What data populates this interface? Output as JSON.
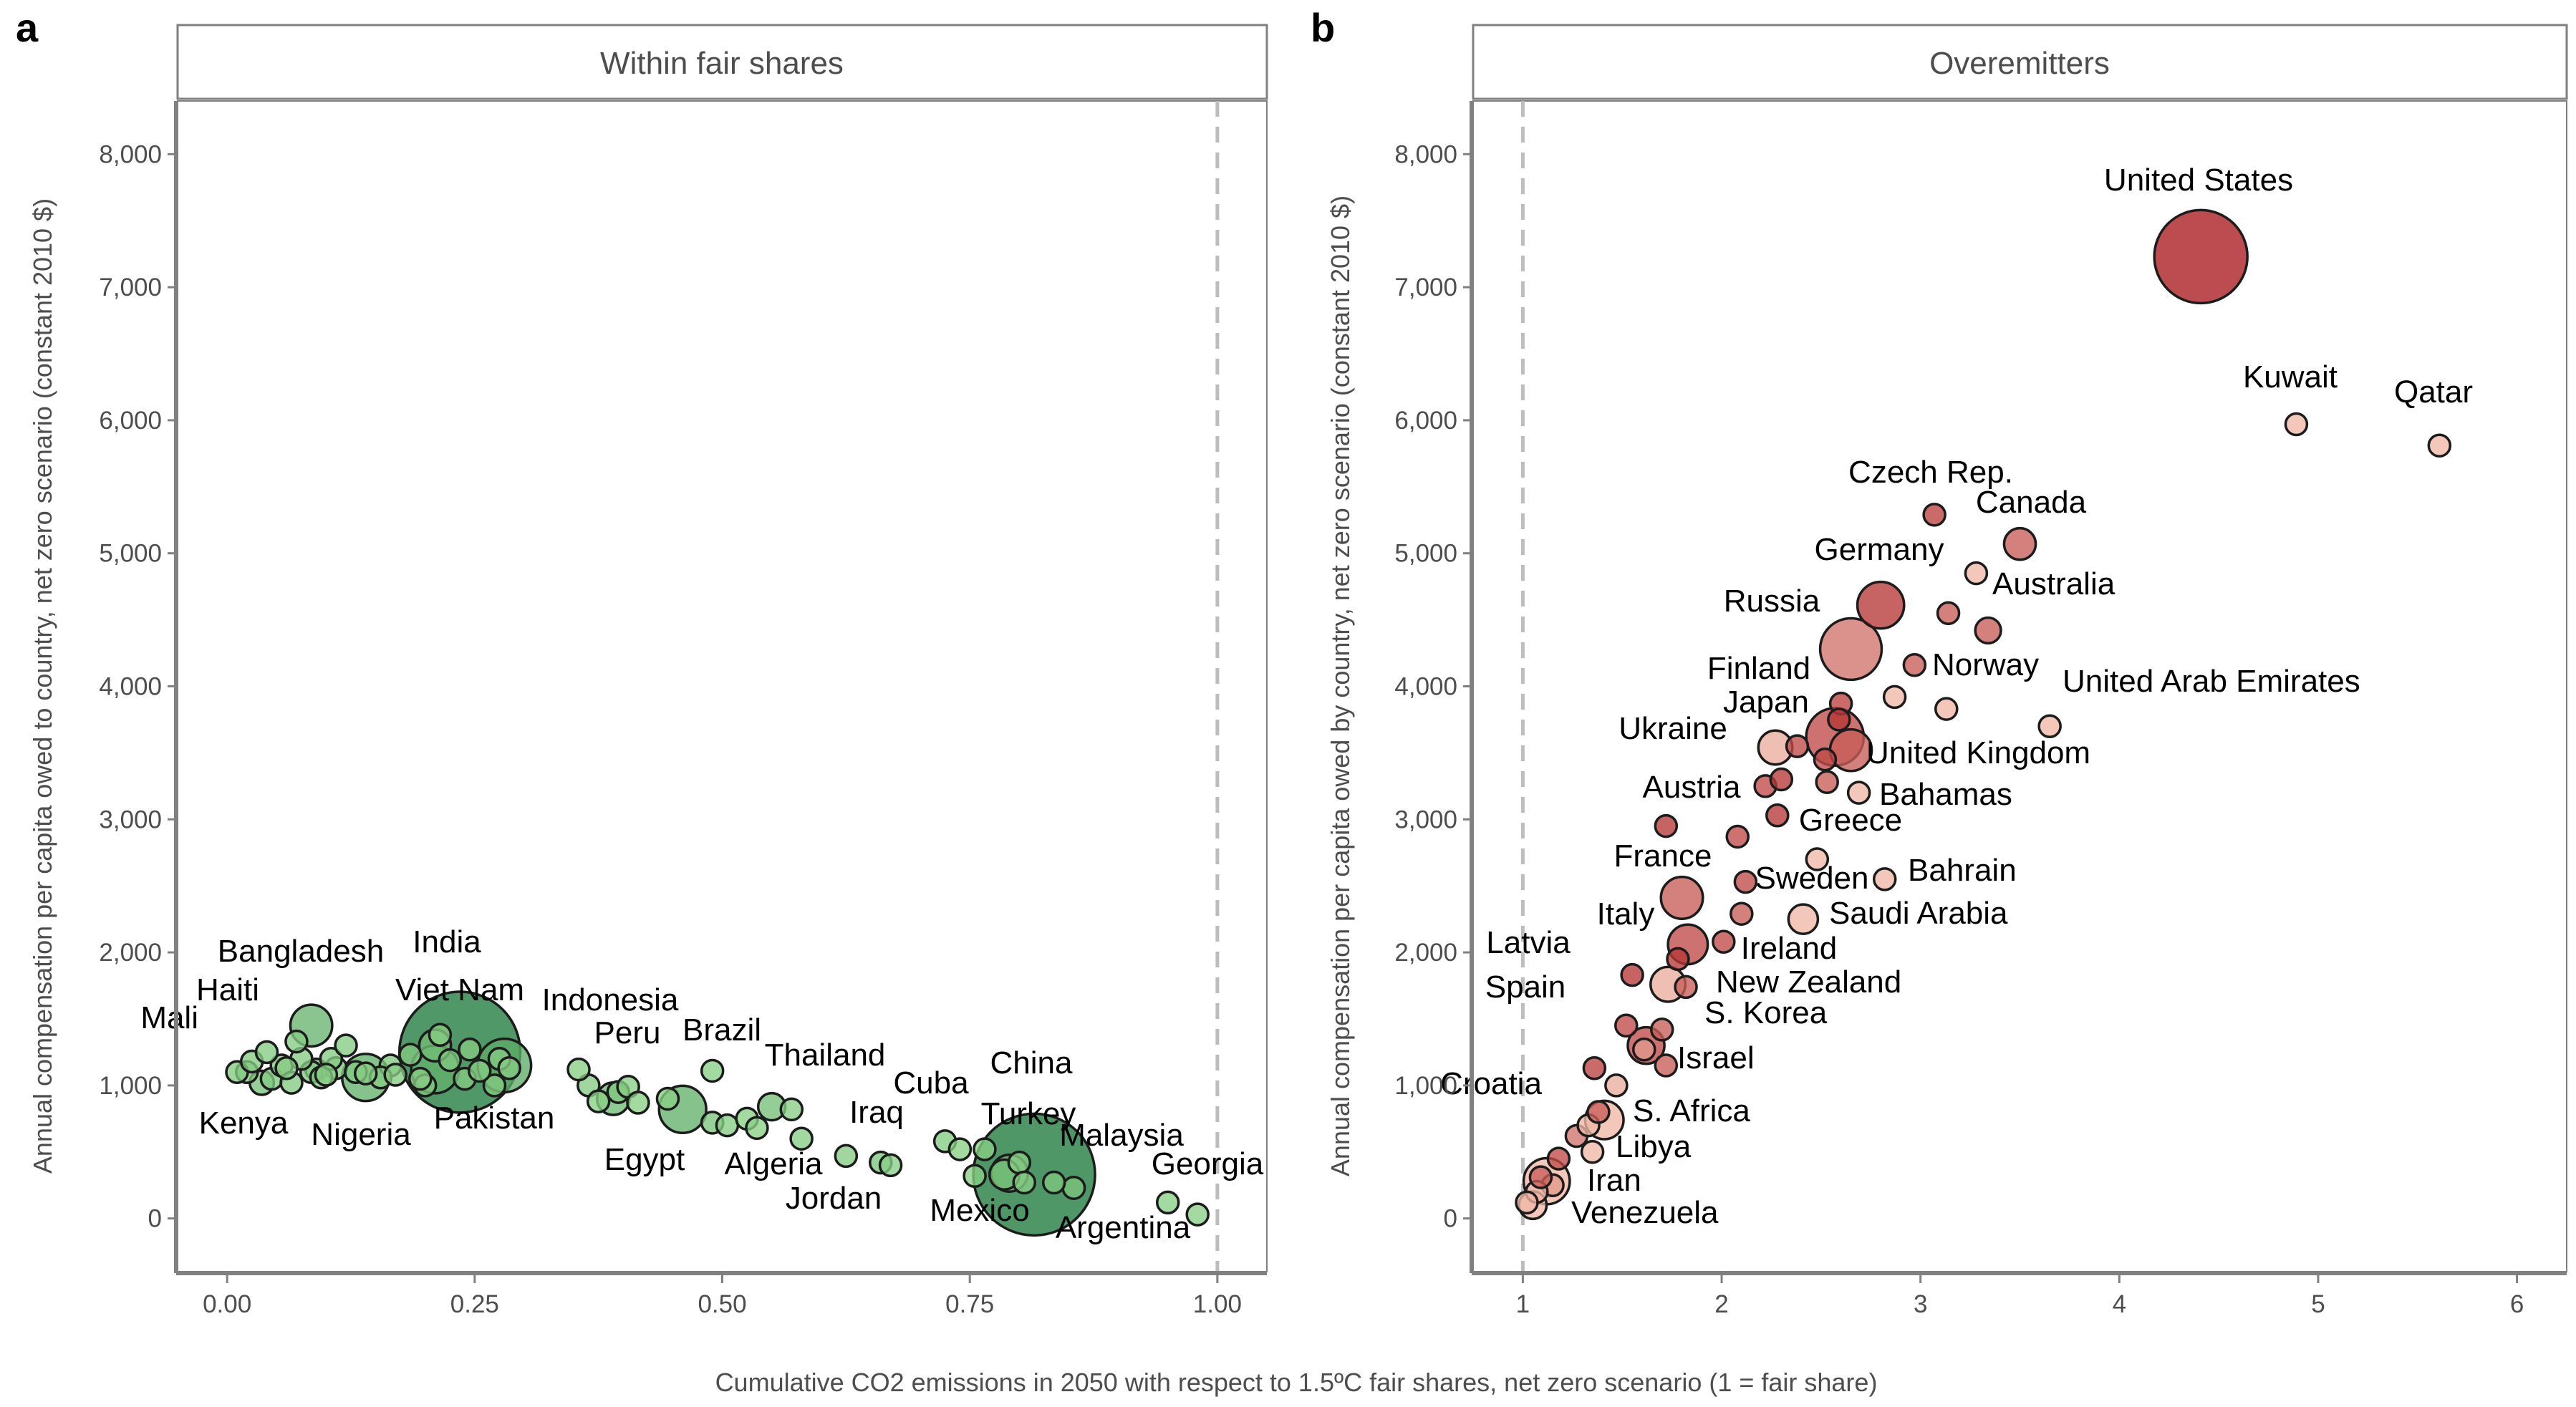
{
  "x_axis_title": "Cumulative CO2 emissions in 2050 with respect to 1.5ºC fair shares, net zero scenario (1 = fair share)",
  "chart_data": [
    {
      "panel": "a",
      "type": "scatter",
      "strip": "Within fair shares",
      "ylabel": "Annual compensation per capita owed to country, net zero scenario (constant 2010 $)",
      "xlim": [
        -0.05,
        1.05
      ],
      "ylim": [
        -400,
        8400
      ],
      "x_ticks": [
        "0.00",
        "0.25",
        "0.50",
        "0.75",
        "1.00"
      ],
      "y_ticks": [
        "0",
        "1,000",
        "2,000",
        "3,000",
        "4,000",
        "5,000",
        "6,000",
        "7,000",
        "8,000"
      ],
      "reference_line_x": 1,
      "color_scale": "greens",
      "labeled_points": [
        {
          "label": "India",
          "x": 0.235,
          "y": 1250,
          "size": 1380
        },
        {
          "label": "China",
          "x": 0.815,
          "y": 330,
          "size": 1400
        },
        {
          "label": "Indonesia",
          "x": 0.28,
          "y": 1150,
          "size": 270
        },
        {
          "label": "Pakistan",
          "x": 0.21,
          "y": 1120,
          "size": 215
        },
        {
          "label": "Nigeria",
          "x": 0.14,
          "y": 1060,
          "size": 210
        },
        {
          "label": "Bangladesh",
          "x": 0.085,
          "y": 1450,
          "size": 165
        },
        {
          "label": "Brazil",
          "x": 0.46,
          "y": 820,
          "size": 210
        },
        {
          "label": "Egypt",
          "x": 0.39,
          "y": 900,
          "size": 100
        },
        {
          "label": "Viet Nam",
          "x": 0.21,
          "y": 1300,
          "size": 95
        },
        {
          "label": "Kenya",
          "x": 0.035,
          "y": 1020,
          "size": 55
        },
        {
          "label": "Haiti",
          "x": 0.07,
          "y": 1330,
          "size": 11
        },
        {
          "label": "Mali",
          "x": 0.02,
          "y": 1100,
          "size": 20
        },
        {
          "label": "Peru",
          "x": 0.395,
          "y": 950,
          "size": 33
        },
        {
          "label": "Thailand",
          "x": 0.55,
          "y": 840,
          "size": 70
        },
        {
          "label": "Algeria",
          "x": 0.49,
          "y": 720,
          "size": 44
        },
        {
          "label": "Cuba",
          "x": 0.725,
          "y": 580,
          "size": 11
        },
        {
          "label": "Iraq",
          "x": 0.66,
          "y": 420,
          "size": 40
        },
        {
          "label": "Jordan",
          "x": 0.625,
          "y": 470,
          "size": 10
        },
        {
          "label": "Turkey",
          "x": 0.785,
          "y": 330,
          "size": 84
        },
        {
          "label": "Mexico",
          "x": 0.79,
          "y": 340,
          "size": 128
        },
        {
          "label": "Malaysia",
          "x": 0.835,
          "y": 270,
          "size": 32
        },
        {
          "label": "Argentina",
          "x": 0.855,
          "y": 230,
          "size": 45
        },
        {
          "label": "Georgia",
          "x": 0.95,
          "y": 120,
          "size": 4
        }
      ],
      "other_points": [
        {
          "x": 0.01,
          "y": 1100,
          "size": 15
        },
        {
          "x": 0.025,
          "y": 1180,
          "size": 12
        },
        {
          "x": 0.04,
          "y": 1250,
          "size": 12
        },
        {
          "x": 0.045,
          "y": 1050,
          "size": 18
        },
        {
          "x": 0.055,
          "y": 1150,
          "size": 14
        },
        {
          "x": 0.06,
          "y": 1130,
          "size": 10
        },
        {
          "x": 0.065,
          "y": 1020,
          "size": 14
        },
        {
          "x": 0.075,
          "y": 1200,
          "size": 12
        },
        {
          "x": 0.085,
          "y": 1100,
          "size": 16
        },
        {
          "x": 0.09,
          "y": 1120,
          "size": 22
        },
        {
          "x": 0.095,
          "y": 1060,
          "size": 16
        },
        {
          "x": 0.1,
          "y": 1080,
          "size": 12
        },
        {
          "x": 0.105,
          "y": 1200,
          "size": 14
        },
        {
          "x": 0.11,
          "y": 1130,
          "size": 18
        },
        {
          "x": 0.12,
          "y": 1300,
          "size": 12
        },
        {
          "x": 0.13,
          "y": 1100,
          "size": 16
        },
        {
          "x": 0.14,
          "y": 1090,
          "size": 12
        },
        {
          "x": 0.155,
          "y": 1060,
          "size": 14
        },
        {
          "x": 0.165,
          "y": 1150,
          "size": 18
        },
        {
          "x": 0.17,
          "y": 1080,
          "size": 10
        },
        {
          "x": 0.185,
          "y": 1230,
          "size": 20
        },
        {
          "x": 0.195,
          "y": 1050,
          "size": 10
        },
        {
          "x": 0.2,
          "y": 1000,
          "size": 28
        },
        {
          "x": 0.215,
          "y": 1380,
          "size": 9
        },
        {
          "x": 0.225,
          "y": 1190,
          "size": 24
        },
        {
          "x": 0.24,
          "y": 1050,
          "size": 12
        },
        {
          "x": 0.245,
          "y": 1270,
          "size": 14
        },
        {
          "x": 0.255,
          "y": 1110,
          "size": 9
        },
        {
          "x": 0.27,
          "y": 1000,
          "size": 16
        },
        {
          "x": 0.275,
          "y": 1200,
          "size": 14
        },
        {
          "x": 0.285,
          "y": 1130,
          "size": 9
        },
        {
          "x": 0.355,
          "y": 1120,
          "size": 5
        },
        {
          "x": 0.365,
          "y": 1000,
          "size": 10
        },
        {
          "x": 0.375,
          "y": 880,
          "size": 5
        },
        {
          "x": 0.405,
          "y": 990,
          "size": 5
        },
        {
          "x": 0.415,
          "y": 870,
          "size": 5
        },
        {
          "x": 0.445,
          "y": 900,
          "size": 5
        },
        {
          "x": 0.49,
          "y": 1110,
          "size": 4
        },
        {
          "x": 0.505,
          "y": 700,
          "size": 9
        },
        {
          "x": 0.525,
          "y": 750,
          "size": 5
        },
        {
          "x": 0.535,
          "y": 680,
          "size": 5
        },
        {
          "x": 0.57,
          "y": 820,
          "size": 6
        },
        {
          "x": 0.58,
          "y": 600,
          "size": 6
        },
        {
          "x": 0.67,
          "y": 400,
          "size": 4
        },
        {
          "x": 0.74,
          "y": 520,
          "size": 5
        },
        {
          "x": 0.755,
          "y": 320,
          "size": 5
        },
        {
          "x": 0.765,
          "y": 520,
          "size": 5
        },
        {
          "x": 0.8,
          "y": 420,
          "size": 6
        },
        {
          "x": 0.805,
          "y": 270,
          "size": 5
        },
        {
          "x": 0.98,
          "y": 30,
          "size": 3
        }
      ]
    },
    {
      "panel": "b",
      "type": "scatter",
      "strip": "Overemitters",
      "ylabel": "Annual compensation per capita owed by country, net zero scenario (constant 2010 $)",
      "xlim": [
        0.75,
        6.25
      ],
      "ylim": [
        -400,
        8400
      ],
      "x_ticks": [
        "1",
        "2",
        "3",
        "4",
        "5",
        "6"
      ],
      "y_ticks": [
        "0",
        "1,000",
        "2,000",
        "3,000",
        "4,000",
        "5,000",
        "6,000",
        "7,000",
        "8,000"
      ],
      "reference_line_x": 1,
      "color_scale": "reds",
      "labeled_points": [
        {
          "label": "United States",
          "x": 4.41,
          "y": 7230,
          "size": 330,
          "shade": 0.95
        },
        {
          "label": "Kuwait",
          "x": 4.89,
          "y": 5970,
          "size": 4,
          "shade": 0.15
        },
        {
          "label": "Qatar",
          "x": 5.61,
          "y": 5810,
          "size": 3,
          "shade": 0.15
        },
        {
          "label": "Czech Rep.",
          "x": 3.07,
          "y": 5290,
          "size": 11,
          "shade": 0.75
        },
        {
          "label": "Canada",
          "x": 3.5,
          "y": 5070,
          "size": 38,
          "shade": 0.6
        },
        {
          "label": "Germany",
          "x": 2.8,
          "y": 4610,
          "size": 83,
          "shade": 0.8
        },
        {
          "label": "Australia",
          "x": 3.34,
          "y": 4420,
          "size": 25,
          "shade": 0.6
        },
        {
          "label": "Russia",
          "x": 2.65,
          "y": 4280,
          "size": 144,
          "shade": 0.5
        },
        {
          "label": "Norway",
          "x": 2.87,
          "y": 3920,
          "size": 5,
          "shade": 0.15
        },
        {
          "label": "United Arab Emirates",
          "x": 3.65,
          "y": 3700,
          "size": 10,
          "shade": 0.15
        },
        {
          "label": "Finland",
          "x": 2.6,
          "y": 3870,
          "size": 6,
          "shade": 0.75
        },
        {
          "label": "Japan",
          "x": 2.57,
          "y": 3620,
          "size": 126,
          "shade": 0.7
        },
        {
          "label": "Ukraine",
          "x": 2.27,
          "y": 3540,
          "size": 44,
          "shade": 0.2
        },
        {
          "label": "United Kingdom",
          "x": 2.65,
          "y": 3520,
          "size": 66,
          "shade": 0.6
        },
        {
          "label": "Bahamas",
          "x": 2.69,
          "y": 3200,
          "size": 2,
          "shade": 0.15
        },
        {
          "label": "Austria",
          "x": 1.72,
          "y": 2950,
          "size": 9,
          "shade": 0.8
        },
        {
          "label": "Greece",
          "x": 2.48,
          "y": 2700,
          "size": 11,
          "shade": 0.15
        },
        {
          "label": "Bahrain",
          "x": 2.82,
          "y": 2550,
          "size": 1.5,
          "shade": 0.15
        },
        {
          "label": "France",
          "x": 1.8,
          "y": 2410,
          "size": 67,
          "shade": 0.6
        },
        {
          "label": "Sweden",
          "x": 2.12,
          "y": 2530,
          "size": 10,
          "shade": 0.7
        },
        {
          "label": "Saudi Arabia",
          "x": 2.41,
          "y": 2250,
          "size": 33,
          "shade": 0.15
        },
        {
          "label": "Italy",
          "x": 1.83,
          "y": 2060,
          "size": 60,
          "shade": 0.7
        },
        {
          "label": "Ireland",
          "x": 2.01,
          "y": 2080,
          "size": 5,
          "shade": 0.7
        },
        {
          "label": "Latvia",
          "x": 1.55,
          "y": 1830,
          "size": 2,
          "shade": 0.8
        },
        {
          "label": "New Zealand",
          "x": 1.82,
          "y": 1740,
          "size": 5,
          "shade": 0.6
        },
        {
          "label": "Spain",
          "x": 1.73,
          "y": 1760,
          "size": 46,
          "shade": 0.2
        },
        {
          "label": "S. Korea",
          "x": 1.62,
          "y": 1300,
          "size": 51,
          "shade": 0.7
        },
        {
          "label": "Israel",
          "x": 1.72,
          "y": 1150,
          "size": 9,
          "shade": 0.6
        },
        {
          "label": "Croatia",
          "x": 1.36,
          "y": 1130,
          "size": 4,
          "shade": 0.75
        },
        {
          "label": "S. Africa",
          "x": 1.41,
          "y": 740,
          "size": 56,
          "shade": 0.15
        },
        {
          "label": "Libya",
          "x": 1.35,
          "y": 500,
          "size": 6,
          "shade": 0.15
        },
        {
          "label": "Iran",
          "x": 1.12,
          "y": 280,
          "size": 81,
          "shade": 0.15
        },
        {
          "label": "Venezuela",
          "x": 1.05,
          "y": 100,
          "size": 29,
          "shade": 0.15
        }
      ],
      "other_points": [
        {
          "x": 3.14,
          "y": 4550,
          "size": 1,
          "shade": 0.6
        },
        {
          "x": 2.97,
          "y": 4160,
          "size": 1.5,
          "shade": 0.6
        },
        {
          "x": 3.13,
          "y": 3830,
          "size": 2,
          "shade": 0.15
        },
        {
          "x": 3.28,
          "y": 4850,
          "size": 1,
          "shade": 0.15
        },
        {
          "x": 2.52,
          "y": 3450,
          "size": 3,
          "shade": 0.7
        },
        {
          "x": 2.38,
          "y": 3550,
          "size": 4,
          "shade": 0.7
        },
        {
          "x": 2.22,
          "y": 3250,
          "size": 10,
          "shade": 0.7
        },
        {
          "x": 2.3,
          "y": 3300,
          "size": 3,
          "shade": 0.8
        },
        {
          "x": 2.53,
          "y": 3280,
          "size": 8,
          "shade": 0.6
        },
        {
          "x": 2.59,
          "y": 3750,
          "size": 3,
          "shade": 0.8
        },
        {
          "x": 2.08,
          "y": 2870,
          "size": 3,
          "shade": 0.7
        },
        {
          "x": 2.28,
          "y": 3030,
          "size": 9,
          "shade": 0.8
        },
        {
          "x": 2.1,
          "y": 2290,
          "size": 1,
          "shade": 0.6
        },
        {
          "x": 1.78,
          "y": 1950,
          "size": 2,
          "shade": 0.8
        },
        {
          "x": 1.52,
          "y": 1450,
          "size": 2,
          "shade": 0.7
        },
        {
          "x": 1.7,
          "y": 1420,
          "size": 2,
          "shade": 0.6
        },
        {
          "x": 1.61,
          "y": 1270,
          "size": 1.5,
          "shade": 0.3
        },
        {
          "x": 1.47,
          "y": 1000,
          "size": 1,
          "shade": 0.2
        },
        {
          "x": 1.38,
          "y": 800,
          "size": 1,
          "shade": 0.6
        },
        {
          "x": 1.27,
          "y": 620,
          "size": 3,
          "shade": 0.5
        },
        {
          "x": 1.33,
          "y": 700,
          "size": 2,
          "shade": 0.15
        },
        {
          "x": 1.18,
          "y": 450,
          "size": 2,
          "shade": 0.7
        },
        {
          "x": 1.15,
          "y": 250,
          "size": 4,
          "shade": 0.3
        },
        {
          "x": 1.07,
          "y": 200,
          "size": 3,
          "shade": 0.15
        },
        {
          "x": 1.09,
          "y": 310,
          "size": 2,
          "shade": 0.6
        },
        {
          "x": 1.02,
          "y": 120,
          "size": 2,
          "shade": 0.15
        }
      ]
    }
  ]
}
